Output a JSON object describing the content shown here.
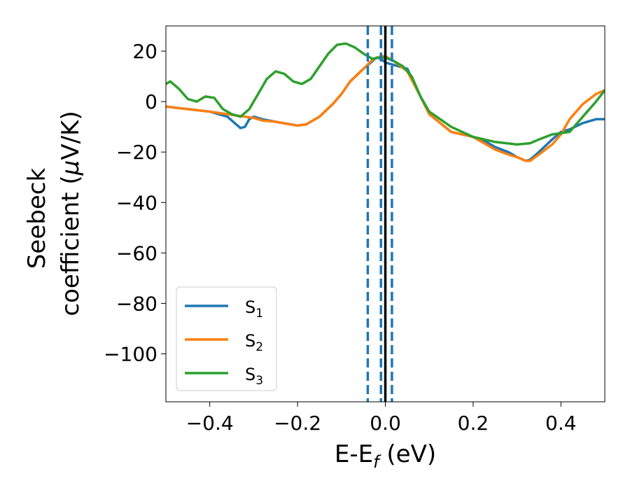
{
  "chart_data": {
    "type": "line",
    "title": "",
    "xlabel": "E-E",
    "xlabel_sub": "f",
    "xlabel_unit": " (eV)",
    "ylabel_line1": "Seebeck",
    "ylabel_line2_text": "coefficient  (",
    "ylabel_line2_mu": "μ",
    "ylabel_line2_unit": "V/K)",
    "xlim": [
      -0.5,
      0.5
    ],
    "ylim": [
      -119,
      30
    ],
    "xticks": [
      -0.4,
      -0.2,
      0.0,
      0.2,
      0.4
    ],
    "xtick_labels": [
      "−0.4",
      "−0.2",
      "0.0",
      "0.2",
      "0.4"
    ],
    "yticks": [
      20,
      0,
      -20,
      -40,
      -60,
      -80,
      -100
    ],
    "ytick_labels": [
      "20",
      "0",
      "−20",
      "−40",
      "−60",
      "−80",
      "−100"
    ],
    "grid": false,
    "legend_position": "lower-left",
    "series": [
      {
        "name": "S",
        "sub": "1",
        "color": "#1f77b4",
        "x": [
          -0.5,
          -0.45,
          -0.4,
          -0.36,
          -0.34,
          -0.33,
          -0.32,
          -0.31,
          -0.3,
          -0.28,
          -0.25,
          -0.2,
          -0.18,
          -0.15,
          -0.12,
          -0.1,
          -0.08,
          -0.05,
          -0.03,
          -0.02,
          -0.01,
          0.0,
          0.02,
          0.05,
          0.08,
          0.1,
          0.15,
          0.2,
          0.22,
          0.25,
          0.28,
          0.3,
          0.32,
          0.33,
          0.35,
          0.38,
          0.4,
          0.42,
          0.45,
          0.48,
          0.5
        ],
        "y": [
          -2,
          -3,
          -4,
          -6,
          -9,
          -10.5,
          -10,
          -7,
          -6,
          -7,
          -8,
          -9.5,
          -9,
          -6,
          -1,
          3,
          8,
          13,
          16,
          17.5,
          17,
          15.5,
          14.5,
          13,
          2,
          -5,
          -12,
          -14,
          -15,
          -18,
          -20,
          -22,
          -23.5,
          -23,
          -20,
          -15,
          -12,
          -11,
          -8.5,
          -7,
          -7
        ]
      },
      {
        "name": "S",
        "sub": "2",
        "color": "#ff7f0e",
        "x": [
          -0.5,
          -0.45,
          -0.4,
          -0.36,
          -0.34,
          -0.32,
          -0.3,
          -0.28,
          -0.25,
          -0.2,
          -0.18,
          -0.15,
          -0.12,
          -0.1,
          -0.08,
          -0.05,
          -0.03,
          -0.01,
          0.0,
          0.02,
          0.05,
          0.08,
          0.1,
          0.15,
          0.2,
          0.22,
          0.25,
          0.28,
          0.3,
          0.32,
          0.33,
          0.35,
          0.38,
          0.4,
          0.42,
          0.45,
          0.48,
          0.5
        ],
        "y": [
          -2,
          -3,
          -4,
          -5,
          -5.5,
          -6,
          -6.5,
          -7.5,
          -8,
          -9.5,
          -9,
          -6,
          -1,
          3,
          8,
          13,
          16.5,
          18,
          18,
          16,
          12,
          2,
          -5,
          -12,
          -14,
          -16,
          -19,
          -21,
          -22,
          -23.5,
          -23.5,
          -21,
          -17,
          -13,
          -7,
          -1,
          3,
          4.5
        ]
      },
      {
        "name": "S",
        "sub": "3",
        "color": "#2ca02c",
        "x": [
          -0.5,
          -0.49,
          -0.47,
          -0.45,
          -0.43,
          -0.41,
          -0.39,
          -0.37,
          -0.35,
          -0.33,
          -0.31,
          -0.29,
          -0.27,
          -0.25,
          -0.23,
          -0.21,
          -0.19,
          -0.17,
          -0.15,
          -0.13,
          -0.11,
          -0.09,
          -0.07,
          -0.05,
          -0.03,
          -0.01,
          0.0,
          0.02,
          0.04,
          0.06,
          0.08,
          0.1,
          0.15,
          0.2,
          0.25,
          0.3,
          0.33,
          0.35,
          0.38,
          0.4,
          0.42,
          0.45,
          0.48,
          0.5
        ],
        "y": [
          7,
          8,
          5,
          1,
          0,
          2,
          1.5,
          -3,
          -5,
          -6,
          -3,
          3,
          9,
          12,
          11,
          8,
          7,
          9,
          14,
          19,
          22.5,
          23,
          21.5,
          19,
          17,
          17.5,
          17.5,
          16,
          14,
          10,
          2,
          -4,
          -10,
          -14,
          -16,
          -17,
          -16.5,
          -15,
          -13,
          -12.5,
          -12,
          -6,
          0,
          4.5
        ]
      }
    ],
    "vlines": [
      {
        "x": -0.04,
        "style": "dashed",
        "color": "#1f77b4"
      },
      {
        "x": -0.01,
        "style": "dashed",
        "color": "#1f77b4"
      },
      {
        "x": 0.0,
        "style": "solid",
        "color": "#000000"
      },
      {
        "x": 0.015,
        "style": "dashed",
        "color": "#1f77b4"
      }
    ]
  }
}
